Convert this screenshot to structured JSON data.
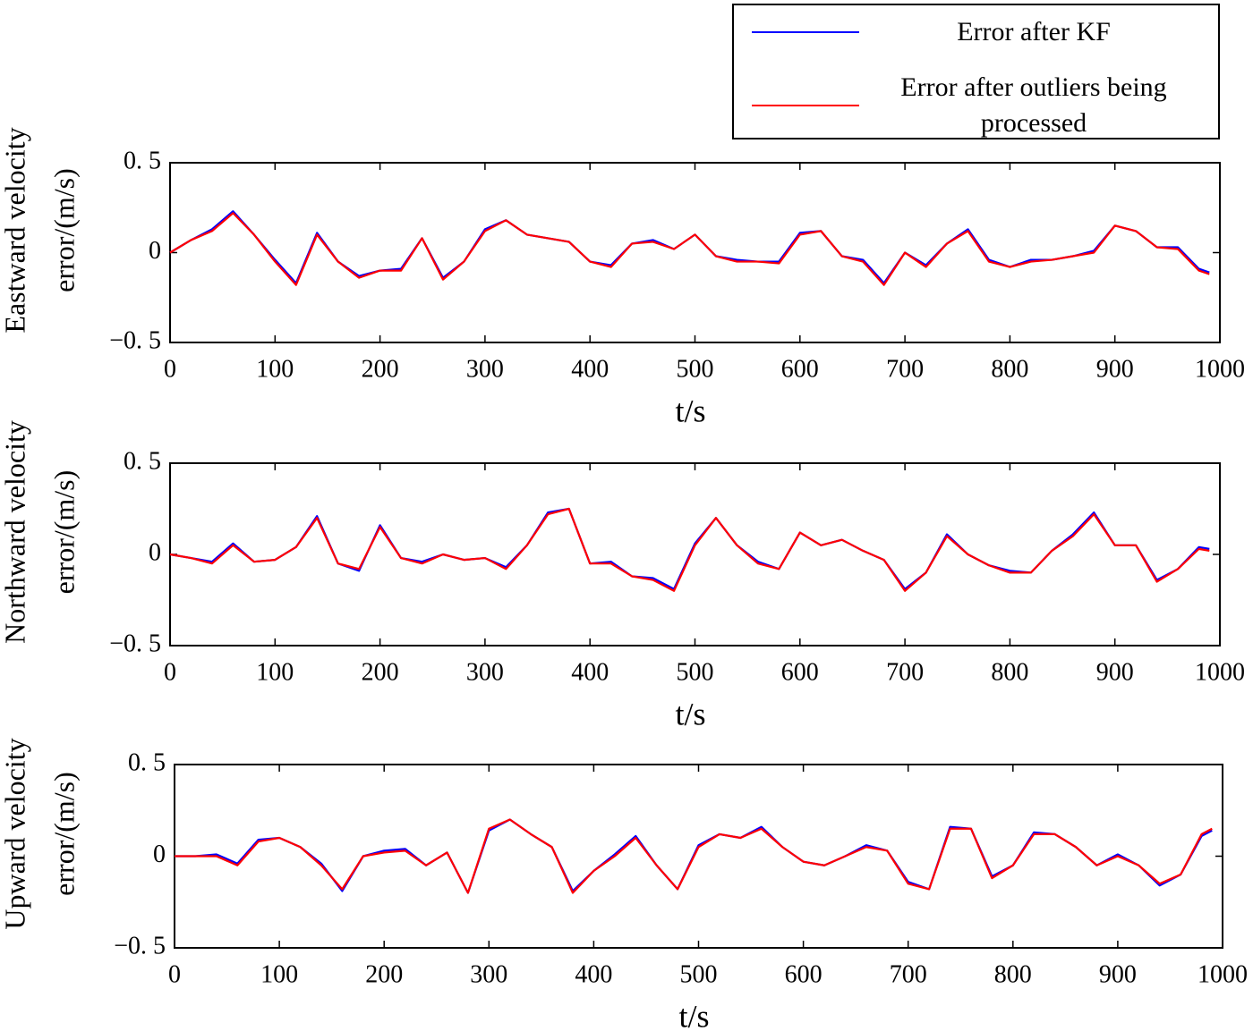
{
  "legend": [
    {
      "name": "Error after KF",
      "color": "#0000ff"
    },
    {
      "name": "Error after outliers being processed",
      "color": "#ff0000"
    }
  ],
  "chart_data": [
    {
      "type": "line",
      "xlabel": "t/s",
      "ylabel": [
        "Eastward velocity",
        "error/(m/s)"
      ],
      "xlim": [
        0,
        1000
      ],
      "ylim": [
        -0.5,
        0.5
      ],
      "xticks": [
        0,
        100,
        200,
        300,
        400,
        500,
        600,
        700,
        800,
        900,
        1000
      ],
      "yticks": [
        {
          "value": -0.5,
          "label": "−0. 5"
        },
        0,
        {
          "value": 0.5,
          "label": "0. 5"
        }
      ],
      "x": [
        0,
        20,
        40,
        60,
        80,
        100,
        120,
        140,
        160,
        180,
        200,
        220,
        240,
        260,
        280,
        300,
        320,
        340,
        360,
        380,
        400,
        420,
        440,
        460,
        480,
        500,
        520,
        540,
        560,
        580,
        600,
        620,
        640,
        660,
        680,
        700,
        720,
        740,
        760,
        780,
        800,
        820,
        840,
        860,
        880,
        900,
        920,
        940,
        960,
        980,
        990
      ],
      "series": [
        {
          "color": "#0000ff",
          "values": [
            0,
            0.07,
            0.13,
            0.23,
            0.1,
            -0.04,
            -0.17,
            0.11,
            -0.05,
            -0.13,
            -0.1,
            -0.09,
            0.08,
            -0.14,
            -0.05,
            0.13,
            0.18,
            0.1,
            0.08,
            0.06,
            -0.05,
            -0.07,
            0.05,
            0.07,
            0.02,
            0.1,
            -0.02,
            -0.04,
            -0.05,
            -0.05,
            0.11,
            0.12,
            -0.02,
            -0.04,
            -0.17,
            0.0,
            -0.07,
            0.05,
            0.13,
            -0.04,
            -0.08,
            -0.04,
            -0.04,
            -0.02,
            0.01,
            0.15,
            0.12,
            0.03,
            0.03,
            -0.09,
            -0.11
          ]
        },
        {
          "color": "#ff0000",
          "values": [
            0,
            0.07,
            0.12,
            0.22,
            0.1,
            -0.05,
            -0.18,
            0.1,
            -0.05,
            -0.14,
            -0.1,
            -0.1,
            0.08,
            -0.15,
            -0.05,
            0.12,
            0.18,
            0.1,
            0.08,
            0.06,
            -0.05,
            -0.08,
            0.05,
            0.06,
            0.02,
            0.1,
            -0.02,
            -0.05,
            -0.05,
            -0.06,
            0.1,
            0.12,
            -0.02,
            -0.05,
            -0.18,
            0.0,
            -0.08,
            0.05,
            0.12,
            -0.05,
            -0.08,
            -0.05,
            -0.04,
            -0.02,
            0.0,
            0.15,
            0.12,
            0.03,
            0.02,
            -0.1,
            -0.12
          ]
        }
      ]
    },
    {
      "type": "line",
      "xlabel": "t/s",
      "ylabel": [
        "Northward velocity",
        "error/(m/s)"
      ],
      "xlim": [
        0,
        1000
      ],
      "ylim": [
        -0.5,
        0.5
      ],
      "xticks": [
        0,
        100,
        200,
        300,
        400,
        500,
        600,
        700,
        800,
        900,
        1000
      ],
      "yticks": [
        {
          "value": -0.5,
          "label": "−0. 5"
        },
        0,
        {
          "value": 0.5,
          "label": "0. 5"
        }
      ],
      "x": [
        0,
        20,
        40,
        60,
        80,
        100,
        120,
        140,
        160,
        180,
        200,
        220,
        240,
        260,
        280,
        300,
        320,
        340,
        360,
        380,
        400,
        420,
        440,
        460,
        480,
        500,
        520,
        540,
        560,
        580,
        600,
        620,
        640,
        660,
        680,
        700,
        720,
        740,
        760,
        780,
        800,
        820,
        840,
        860,
        880,
        900,
        920,
        940,
        960,
        980,
        990
      ],
      "series": [
        {
          "color": "#0000ff",
          "values": [
            0,
            -0.02,
            -0.04,
            0.06,
            -0.04,
            -0.03,
            0.04,
            0.21,
            -0.05,
            -0.09,
            0.16,
            -0.02,
            -0.04,
            0.0,
            -0.03,
            -0.02,
            -0.07,
            0.05,
            0.23,
            0.25,
            -0.05,
            -0.04,
            -0.12,
            -0.13,
            -0.19,
            0.06,
            0.2,
            0.05,
            -0.04,
            -0.08,
            0.12,
            0.05,
            0.08,
            0.02,
            -0.03,
            -0.19,
            -0.1,
            0.11,
            0.0,
            -0.06,
            -0.09,
            -0.1,
            0.02,
            0.11,
            0.23,
            0.05,
            0.05,
            -0.14,
            -0.08,
            0.04,
            0.03
          ]
        },
        {
          "color": "#ff0000",
          "values": [
            0,
            -0.02,
            -0.05,
            0.05,
            -0.04,
            -0.03,
            0.04,
            0.2,
            -0.05,
            -0.08,
            0.15,
            -0.02,
            -0.05,
            0.0,
            -0.03,
            -0.02,
            -0.08,
            0.05,
            0.22,
            0.25,
            -0.05,
            -0.05,
            -0.12,
            -0.14,
            -0.2,
            0.05,
            0.2,
            0.05,
            -0.05,
            -0.08,
            0.12,
            0.05,
            0.08,
            0.02,
            -0.03,
            -0.2,
            -0.1,
            0.1,
            0.0,
            -0.06,
            -0.1,
            -0.1,
            0.02,
            0.1,
            0.22,
            0.05,
            0.05,
            -0.15,
            -0.08,
            0.03,
            0.02
          ]
        }
      ]
    },
    {
      "type": "line",
      "xlabel": "t/s",
      "ylabel": [
        "Upward velocity",
        "error/(m/s)"
      ],
      "xlim": [
        0,
        1000
      ],
      "ylim": [
        -0.5,
        0.5
      ],
      "xticks": [
        0,
        100,
        200,
        300,
        400,
        500,
        600,
        700,
        800,
        900,
        1000
      ],
      "yticks": [
        {
          "value": -0.5,
          "label": "−0. 5"
        },
        0,
        {
          "value": 0.5,
          "label": "0. 5"
        }
      ],
      "x": [
        0,
        20,
        40,
        60,
        80,
        100,
        120,
        140,
        160,
        180,
        200,
        220,
        240,
        260,
        280,
        300,
        320,
        340,
        360,
        380,
        400,
        420,
        440,
        460,
        480,
        500,
        520,
        540,
        560,
        580,
        600,
        620,
        640,
        660,
        680,
        700,
        720,
        740,
        760,
        780,
        800,
        820,
        840,
        860,
        880,
        900,
        920,
        940,
        960,
        980,
        990
      ],
      "series": [
        {
          "color": "#0000ff",
          "values": [
            0,
            0,
            0.01,
            -0.04,
            0.09,
            0.1,
            0.05,
            -0.04,
            -0.19,
            0.0,
            0.03,
            0.04,
            -0.05,
            0.02,
            -0.2,
            0.14,
            0.2,
            0.12,
            0.05,
            -0.19,
            -0.08,
            0.01,
            0.11,
            -0.05,
            -0.18,
            0.06,
            0.12,
            0.1,
            0.16,
            0.05,
            -0.03,
            -0.05,
            0.0,
            0.06,
            0.03,
            -0.14,
            -0.18,
            0.16,
            0.15,
            -0.11,
            -0.05,
            0.13,
            0.12,
            0.05,
            -0.05,
            0.01,
            -0.05,
            -0.16,
            -0.1,
            0.11,
            0.14
          ]
        },
        {
          "color": "#ff0000",
          "values": [
            0,
            0,
            0,
            -0.05,
            0.08,
            0.1,
            0.05,
            -0.05,
            -0.18,
            0.0,
            0.02,
            0.03,
            -0.05,
            0.02,
            -0.2,
            0.15,
            0.2,
            0.12,
            0.05,
            -0.2,
            -0.08,
            0.0,
            0.1,
            -0.05,
            -0.18,
            0.05,
            0.12,
            0.1,
            0.15,
            0.05,
            -0.03,
            -0.05,
            0.0,
            0.05,
            0.03,
            -0.15,
            -0.18,
            0.15,
            0.15,
            -0.12,
            -0.05,
            0.12,
            0.12,
            0.05,
            -0.05,
            0.0,
            -0.05,
            -0.15,
            -0.1,
            0.12,
            0.15
          ]
        }
      ]
    }
  ]
}
